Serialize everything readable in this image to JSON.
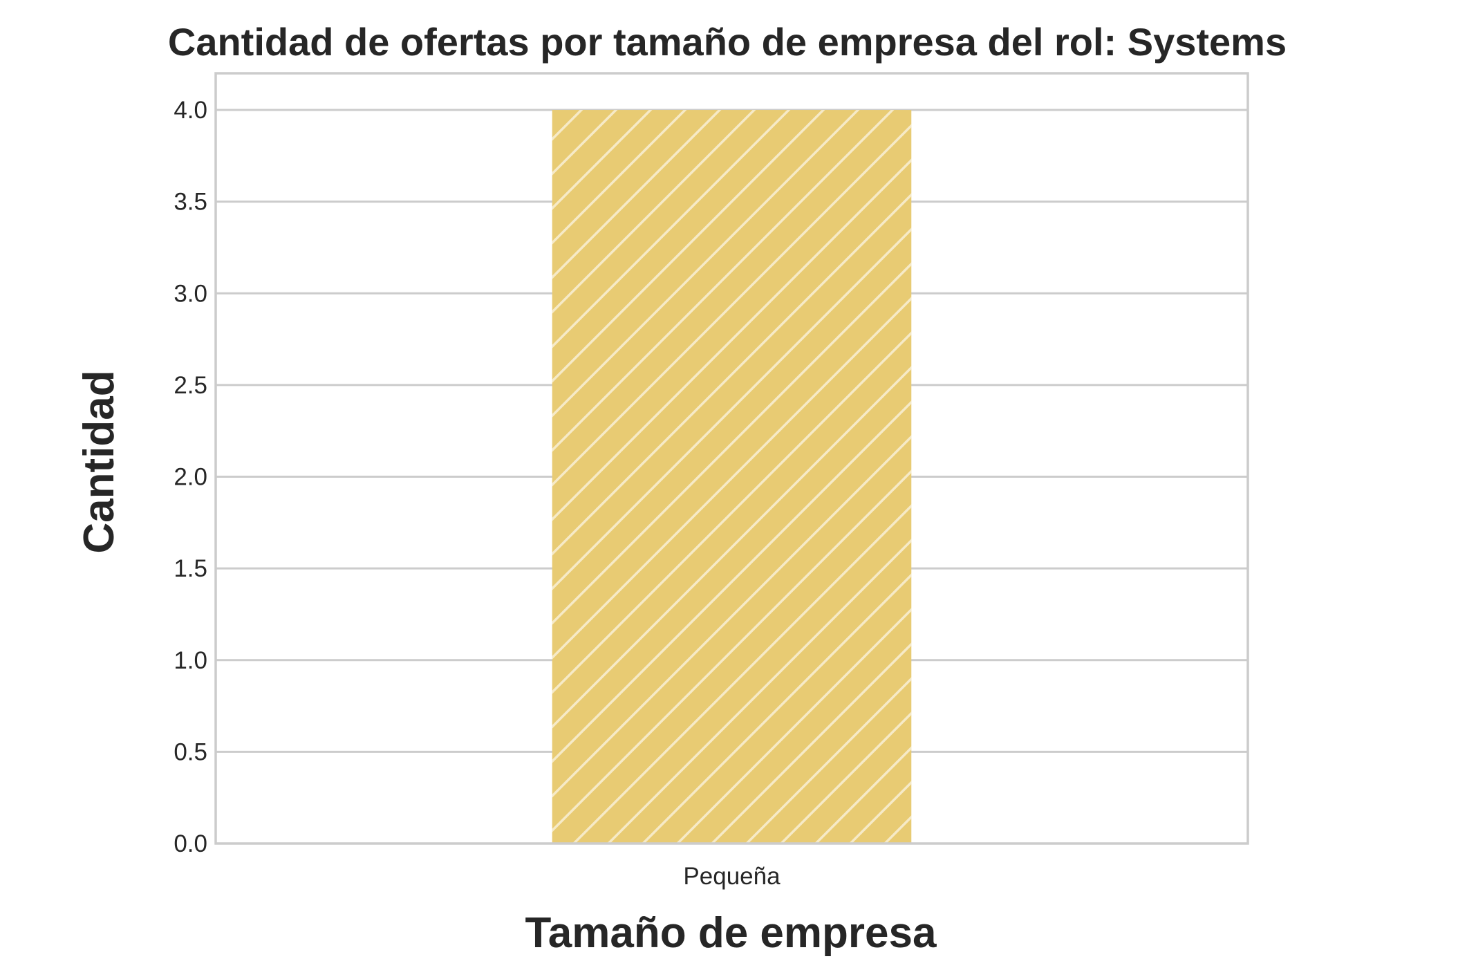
{
  "chart_data": {
    "type": "bar",
    "title": "Cantidad de ofertas por tamaño de empresa del rol: Systems",
    "xlabel": "Tamaño de empresa",
    "ylabel": "Cantidad",
    "categories": [
      "Pequeña"
    ],
    "values": [
      4
    ],
    "ylim": [
      0,
      4.2
    ],
    "yticks": [
      0.0,
      0.5,
      1.0,
      1.5,
      2.0,
      2.5,
      3.0,
      3.5,
      4.0
    ],
    "ytick_labels": [
      "0.0",
      "0.5",
      "1.0",
      "1.5",
      "2.0",
      "2.5",
      "3.0",
      "3.5",
      "4.0"
    ],
    "grid": "horizontal",
    "bar_color": "#e8cb73",
    "bar_hatch": "diagonal",
    "grid_color": "#cccccc",
    "spine_color": "#cccccc"
  }
}
